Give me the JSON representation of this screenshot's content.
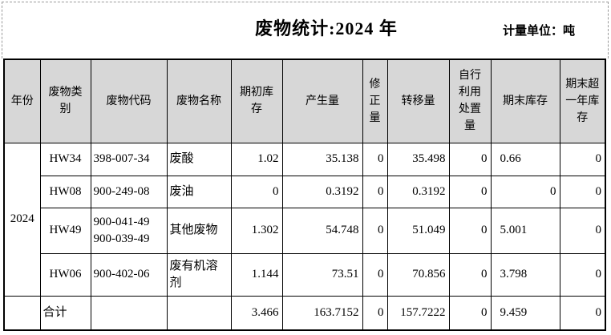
{
  "header": {
    "title": "废物统计:2024 年",
    "unit_label": "计量单位：吨"
  },
  "table": {
    "columns": [
      "年份",
      "废物类\n别",
      "废物代码",
      "废物名称",
      "期初库\n存",
      "产生量",
      "修\n正\n量",
      "转移量",
      "自行\n利用\n处置\n量",
      "期末库存",
      "期末超\n一年库\n存"
    ],
    "rows": [
      {
        "cells": [
          {
            "text": "2024",
            "rowspan": 4,
            "align": "center"
          },
          {
            "text": "HW34",
            "align": "center"
          },
          {
            "text": "398-007-34",
            "align": "left"
          },
          {
            "text": "废酸",
            "align": "left"
          },
          {
            "text": "1.02",
            "align": "right"
          },
          {
            "text": "35.138",
            "align": "right"
          },
          {
            "text": "0",
            "align": "right"
          },
          {
            "text": "35.498",
            "align": "right"
          },
          {
            "text": "0",
            "align": "right"
          },
          {
            "text": "0.66",
            "align": "left"
          },
          {
            "text": "0",
            "align": "right"
          }
        ]
      },
      {
        "cells": [
          {
            "text": "HW08",
            "align": "center"
          },
          {
            "text": "900-249-08",
            "align": "left"
          },
          {
            "text": "废油",
            "align": "left"
          },
          {
            "text": "0",
            "align": "right"
          },
          {
            "text": "0.3192",
            "align": "right"
          },
          {
            "text": "0",
            "align": "right"
          },
          {
            "text": "0.3192",
            "align": "right"
          },
          {
            "text": "0",
            "align": "right"
          },
          {
            "text": "0",
            "align": "right"
          },
          {
            "text": "0",
            "align": "right"
          }
        ]
      },
      {
        "cells": [
          {
            "text": "HW49",
            "align": "center"
          },
          {
            "text": "900-041-49\n900-039-49",
            "align": "left"
          },
          {
            "text": "其他废物",
            "align": "left"
          },
          {
            "text": "1.302",
            "align": "right"
          },
          {
            "text": "54.748",
            "align": "right"
          },
          {
            "text": "0",
            "align": "right"
          },
          {
            "text": "51.049",
            "align": "right"
          },
          {
            "text": "0",
            "align": "right"
          },
          {
            "text": "5.001",
            "align": "left"
          },
          {
            "text": "0",
            "align": "right"
          }
        ]
      },
      {
        "cells": [
          {
            "text": "HW06",
            "align": "center"
          },
          {
            "text": "900-402-06",
            "align": "left"
          },
          {
            "text": "废有机溶\n剂",
            "align": "left"
          },
          {
            "text": "1.144",
            "align": "right"
          },
          {
            "text": "73.51",
            "align": "right"
          },
          {
            "text": "0",
            "align": "right"
          },
          {
            "text": "70.856",
            "align": "right"
          },
          {
            "text": "0",
            "align": "right"
          },
          {
            "text": "3.798",
            "align": "left"
          },
          {
            "text": "0",
            "align": "right"
          }
        ]
      },
      {
        "cells": [
          {
            "text": "",
            "align": "center"
          },
          {
            "text": "合计",
            "align": "left"
          },
          {
            "text": "",
            "align": "left"
          },
          {
            "text": "",
            "align": "left"
          },
          {
            "text": "3.466",
            "align": "right"
          },
          {
            "text": "163.7152",
            "align": "right"
          },
          {
            "text": "0",
            "align": "right"
          },
          {
            "text": "157.7222",
            "align": "right"
          },
          {
            "text": "0",
            "align": "right"
          },
          {
            "text": "9.459",
            "align": "left"
          },
          {
            "text": "0",
            "align": "right"
          }
        ]
      }
    ]
  }
}
